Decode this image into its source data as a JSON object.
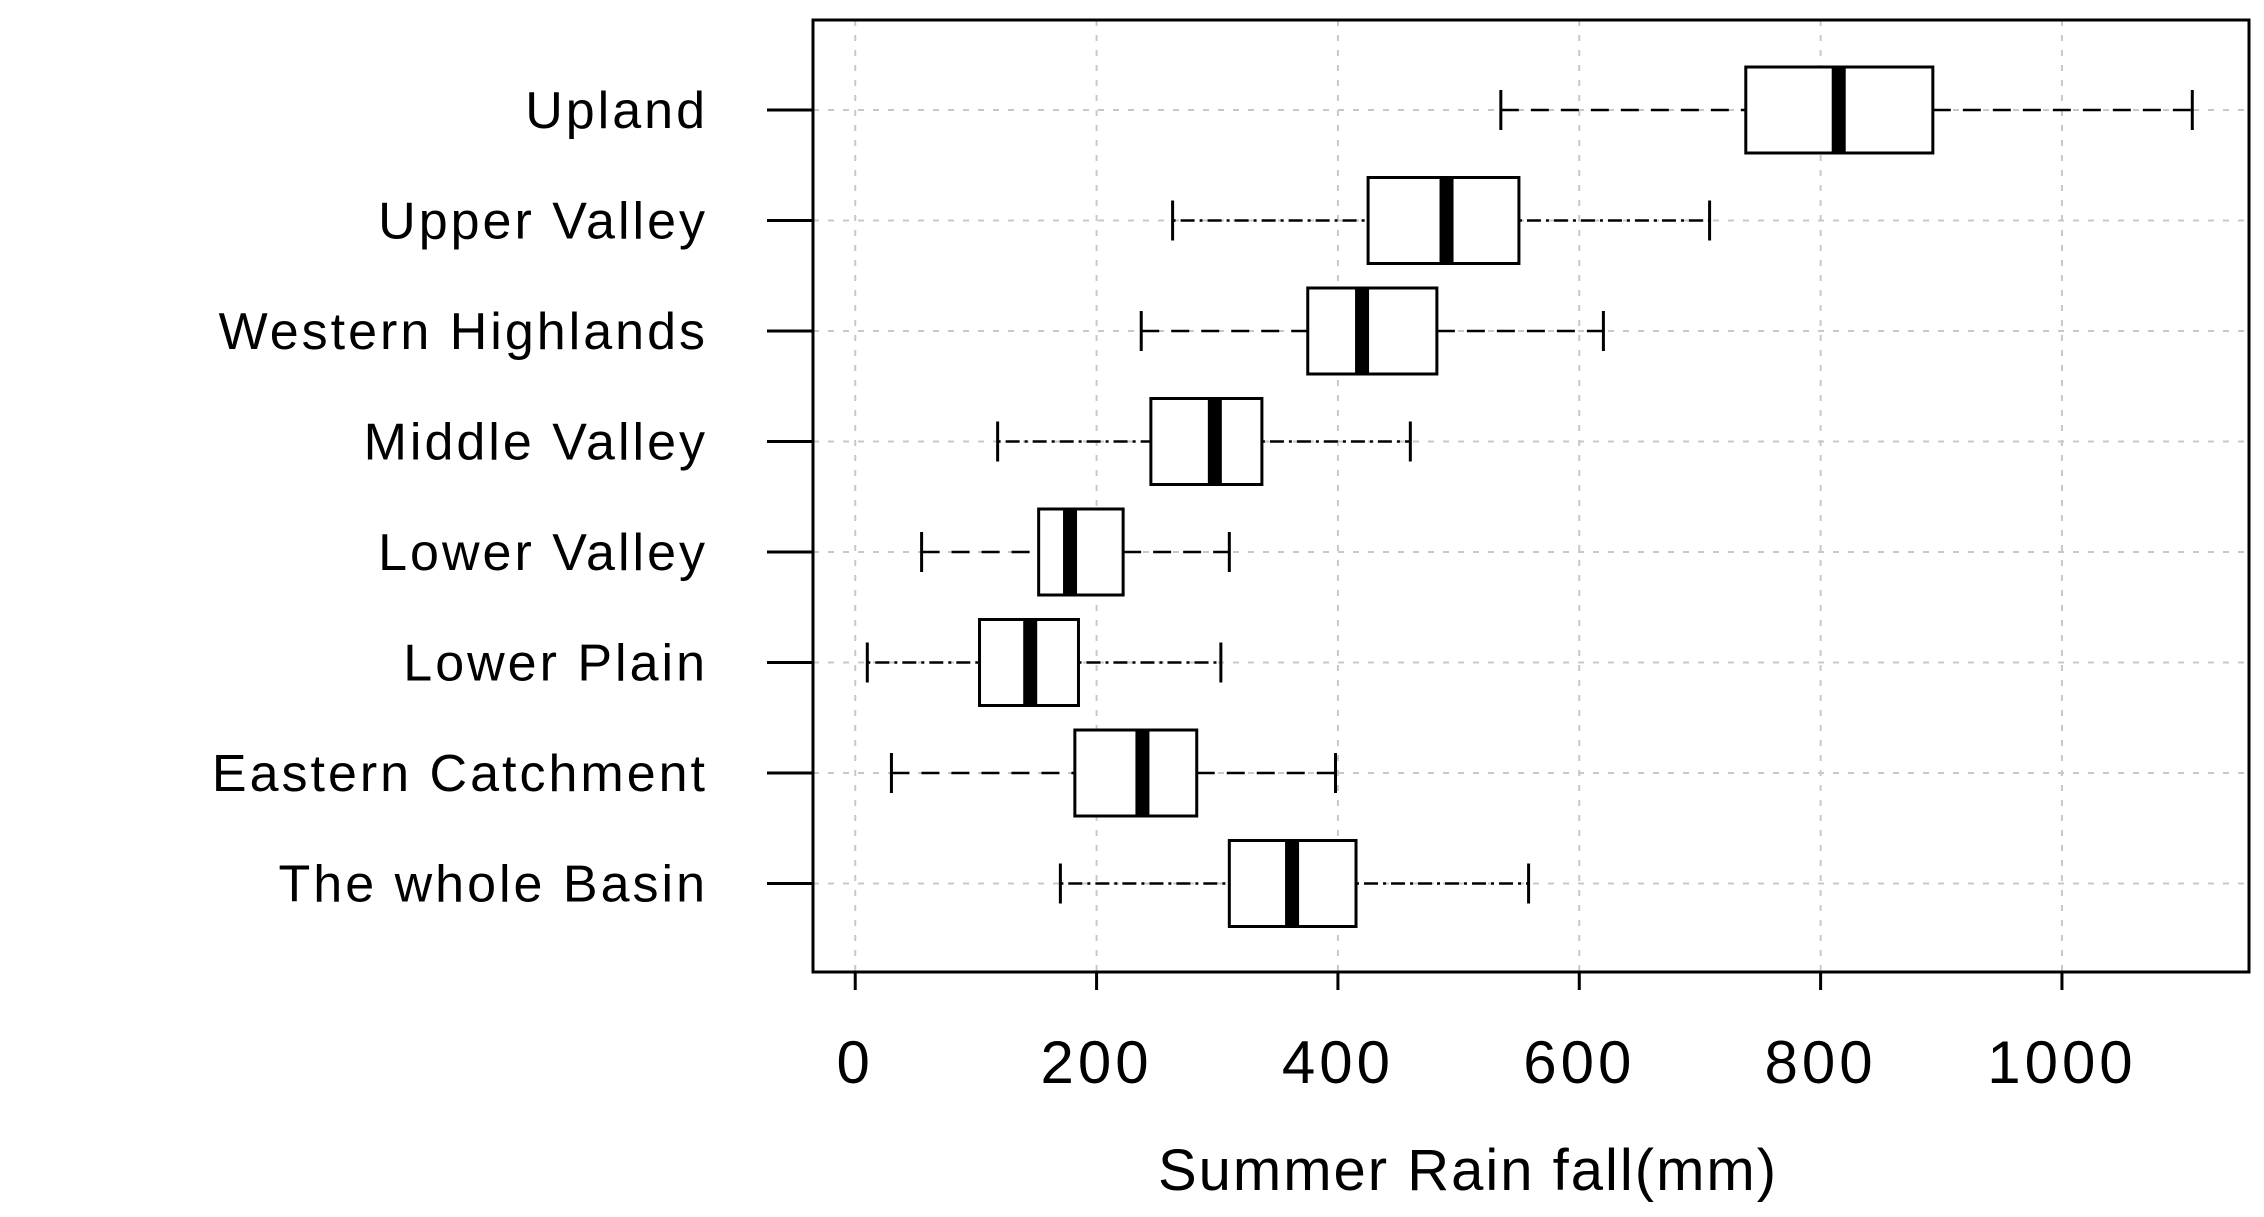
{
  "chart_data": {
    "type": "boxplot",
    "orientation": "horizontal",
    "xlabel": "Summer Rain fall(mm)",
    "ylabel": "",
    "xlim": [
      -35,
      1155
    ],
    "xticks": [
      0,
      200,
      400,
      600,
      800,
      1000
    ],
    "grid": true,
    "categories": [
      "Upland",
      "Upper Valley",
      "Western Highlands",
      "Middle Valley",
      "Lower Valley",
      "Lower Plain",
      "Eastern Catchment",
      "The whole Basin"
    ],
    "boxes": [
      {
        "category": "Upland",
        "whisker_low": 535,
        "q1": 738,
        "median": 815,
        "q3": 893,
        "whisker_high": 1108,
        "whisker_style": "dashed"
      },
      {
        "category": "Upper Valley",
        "whisker_low": 263,
        "q1": 425,
        "median": 490,
        "q3": 550,
        "whisker_high": 708,
        "whisker_style": "dotdash"
      },
      {
        "category": "Western Highlands",
        "whisker_low": 237,
        "q1": 375,
        "median": 420,
        "q3": 482,
        "whisker_high": 620,
        "whisker_style": "dashed"
      },
      {
        "category": "Middle Valley",
        "whisker_low": 118,
        "q1": 245,
        "median": 298,
        "q3": 337,
        "whisker_high": 460,
        "whisker_style": "dotdash"
      },
      {
        "category": "Lower Valley",
        "whisker_low": 55,
        "q1": 152,
        "median": 178,
        "q3": 222,
        "whisker_high": 310,
        "whisker_style": "dashed"
      },
      {
        "category": "Lower Plain",
        "whisker_low": 10,
        "q1": 103,
        "median": 145,
        "q3": 185,
        "whisker_high": 303,
        "whisker_style": "dotdash"
      },
      {
        "category": "Eastern Catchment",
        "whisker_low": 30,
        "q1": 182,
        "median": 238,
        "q3": 283,
        "whisker_high": 398,
        "whisker_style": "dashed"
      },
      {
        "category": "The whole Basin",
        "whisker_low": 170,
        "q1": 310,
        "median": 362,
        "q3": 415,
        "whisker_high": 558,
        "whisker_style": "dotdash"
      }
    ]
  }
}
